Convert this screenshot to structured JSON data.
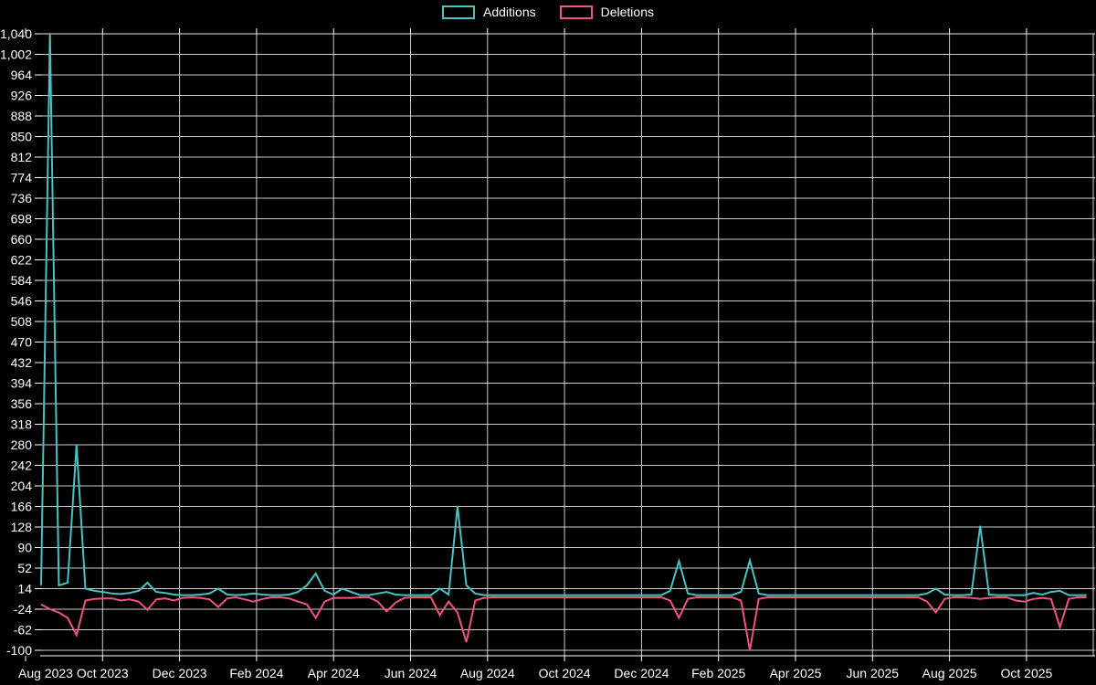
{
  "legend": {
    "items": [
      {
        "label": "Additions",
        "color": "#4ac2c2"
      },
      {
        "label": "Deletions",
        "color": "#f25579"
      }
    ]
  },
  "colors": {
    "background": "#000000",
    "grid": "#f0f0f0",
    "axis_line": "#ffffff",
    "axis_text": "#ffffff",
    "additions": "#4ac2c2",
    "deletions": "#f25579"
  },
  "chart_data": {
    "type": "line",
    "title": "",
    "grid": true,
    "legend_position": "top-center",
    "x_unit": "week",
    "x_axis": {
      "tick_labels": [
        "Aug 2023",
        "Oct 2023",
        "Dec 2023",
        "Feb 2024",
        "Apr 2024",
        "Jun 2024",
        "Aug 2024",
        "Oct 2024",
        "Dec 2024",
        "Feb 2025",
        "Apr 2025",
        "Jun 2025",
        "Aug 2025",
        "Oct 2025"
      ]
    },
    "y_axis": {
      "min": -100,
      "max": 1040,
      "step": 38,
      "tick_labels": [
        "-100",
        "-62",
        "-24",
        "14",
        "52",
        "90",
        "128",
        "166",
        "204",
        "242",
        "280",
        "318",
        "356",
        "394",
        "432",
        "470",
        "508",
        "546",
        "584",
        "622",
        "660",
        "698",
        "736",
        "774",
        "812",
        "850",
        "888",
        "926",
        "964",
        "1,002",
        "1,040"
      ]
    },
    "series": [
      {
        "name": "Additions",
        "color": "#4ac2c2",
        "values": [
          20,
          1040,
          20,
          25,
          280,
          14,
          10,
          8,
          5,
          4,
          6,
          10,
          25,
          8,
          6,
          3,
          2,
          2,
          3,
          5,
          14,
          3,
          2,
          3,
          5,
          3,
          2,
          2,
          3,
          8,
          20,
          42,
          10,
          3,
          14,
          8,
          2,
          2,
          5,
          8,
          3,
          2,
          2,
          2,
          2,
          14,
          3,
          166,
          20,
          5,
          2,
          2,
          2,
          2,
          2,
          2,
          2,
          2,
          2,
          2,
          2,
          2,
          2,
          2,
          2,
          2,
          2,
          2,
          2,
          2,
          2,
          10,
          65,
          5,
          2,
          2,
          2,
          2,
          2,
          8,
          66,
          5,
          2,
          2,
          2,
          2,
          2,
          2,
          2,
          2,
          2,
          2,
          2,
          2,
          2,
          2,
          2,
          2,
          2,
          2,
          5,
          14,
          3,
          2,
          2,
          3,
          130,
          3,
          2,
          2,
          2,
          2,
          6,
          3,
          8,
          10,
          2,
          2,
          2
        ]
      },
      {
        "name": "Deletions",
        "color": "#f25579",
        "values": [
          -15,
          -24,
          -30,
          -40,
          -72,
          -8,
          -5,
          -4,
          -4,
          -8,
          -6,
          -10,
          -25,
          -6,
          -4,
          -8,
          -3,
          -2,
          -3,
          -6,
          -20,
          -4,
          -2,
          -6,
          -10,
          -5,
          -2,
          -2,
          -4,
          -10,
          -15,
          -40,
          -10,
          -3,
          -3,
          -3,
          -2,
          -2,
          -10,
          -28,
          -12,
          -3,
          -2,
          -2,
          -2,
          -35,
          -10,
          -30,
          -85,
          -8,
          -3,
          -2,
          -2,
          -2,
          -2,
          -2,
          -2,
          -2,
          -2,
          -2,
          -2,
          -2,
          -2,
          -2,
          -2,
          -2,
          -2,
          -2,
          -2,
          -2,
          -2,
          -8,
          -40,
          -5,
          -2,
          -2,
          -2,
          -2,
          -2,
          -8,
          -100,
          -5,
          -2,
          -2,
          -2,
          -2,
          -2,
          -2,
          -2,
          -2,
          -2,
          -2,
          -2,
          -2,
          -2,
          -2,
          -2,
          -2,
          -2,
          -2,
          -10,
          -30,
          -5,
          -2,
          -2,
          -3,
          -5,
          -3,
          -2,
          -2,
          -8,
          -10,
          -5,
          -3,
          -5,
          -57,
          -5,
          -2,
          -2
        ]
      }
    ]
  }
}
